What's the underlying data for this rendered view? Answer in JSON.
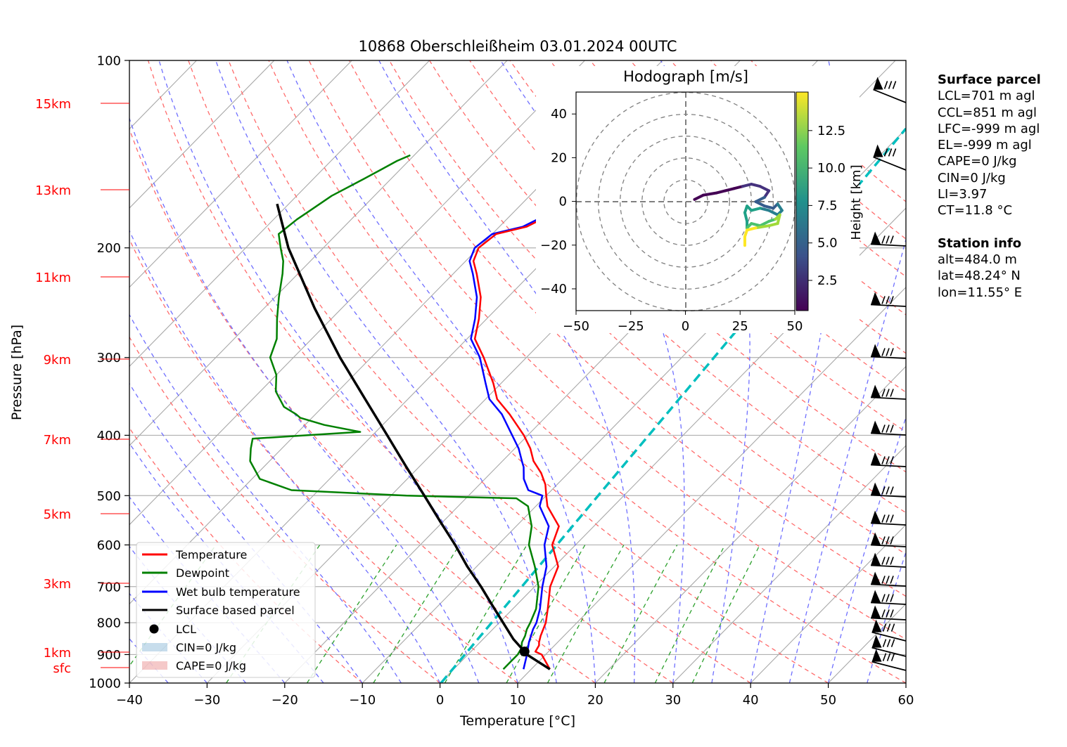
{
  "title": "10868 Oberschleißheim 03.01.2024 00UTC",
  "xlabel": "Temperature [°C]",
  "ylabel": "Pressure [hPa]",
  "pressure_ticks": [
    "100",
    "200",
    "300",
    "400",
    "500",
    "600",
    "700",
    "800",
    "900",
    "1000"
  ],
  "temp_ticks": [
    "−40",
    "−30",
    "−20",
    "−10",
    "0",
    "10",
    "20",
    "30",
    "40",
    "50",
    "60"
  ],
  "height_ticks": [
    {
      "label": "15km",
      "p": 147
    },
    {
      "label": "13km",
      "p": 178
    },
    {
      "label": "11km",
      "p": 216
    },
    {
      "label": "9km",
      "p": 263
    },
    {
      "label": "7km",
      "p": 336
    },
    {
      "label": "5km",
      "p": 461
    },
    {
      "label": "3km",
      "p": 634
    },
    {
      "label": "1km",
      "p": 808
    },
    {
      "label": "sfc",
      "p": 850
    }
  ],
  "legend": [
    "Temperature",
    "Dewpoint",
    "Wet bulb temperature",
    "Surface based parcel",
    "LCL",
    "CIN=0 J/kg",
    "CAPE=0 J/kg"
  ],
  "hodograph": {
    "title": "Hodograph [m/s]",
    "ticks": [
      "−50",
      "−25",
      "0",
      "25",
      "50"
    ],
    "yticks": [
      "−40",
      "−20",
      "0",
      "20",
      "40"
    ],
    "colorbar_label": "Height [km]",
    "colorbar_ticks": [
      "2.5",
      "5.0",
      "7.5",
      "10.0",
      "12.5"
    ]
  },
  "surface_parcel": {
    "heading": "Surface parcel",
    "lines": [
      "LCL=701 m agl",
      "CCL=851 m agl",
      "LFC=-999 m agl",
      "EL=-999 m agl",
      "CAPE=0 J/kg",
      "CIN=0 J/kg",
      "LI=3.97",
      "CT=11.8 °C"
    ]
  },
  "station_info": {
    "heading": "Station info",
    "lines": [
      "alt=484.0 m",
      "lat=48.24° N",
      "lon=11.55° E"
    ]
  },
  "colors": {
    "temperature": "#ff0000",
    "dewpoint": "#008000",
    "wetbulb": "#0000ff",
    "parcel": "#000000",
    "height": "#ff0000",
    "accent_dash": "#00bfbf"
  },
  "chart_data": {
    "type": "line",
    "title": "10868 Oberschleißheim 03.01.2024 00UTC",
    "xlabel": "Temperature [°C]",
    "ylabel": "Pressure [hPa]",
    "xlim": [
      -40,
      60
    ],
    "ylim": [
      1000,
      100
    ],
    "yscale": "log",
    "skew": "skew-T log-p",
    "grid": true,
    "legend_position": "lower-left",
    "series": [
      {
        "name": "Temperature",
        "points": [
          [
            950,
            12.4
          ],
          [
            900,
            9.5
          ],
          [
            890,
            8.3
          ],
          [
            870,
            8.0
          ],
          [
            860,
            7.6
          ],
          [
            840,
            7.0
          ],
          [
            800,
            6.0
          ],
          [
            760,
            4.5
          ],
          [
            700,
            2.0
          ],
          [
            650,
            0.5
          ],
          [
            600,
            -3.0
          ],
          [
            560,
            -4.5
          ],
          [
            520,
            -8.5
          ],
          [
            500,
            -10.0
          ],
          [
            480,
            -11.5
          ],
          [
            460,
            -13.5
          ],
          [
            440,
            -16.0
          ],
          [
            420,
            -18.0
          ],
          [
            400,
            -20.5
          ],
          [
            370,
            -25.0
          ],
          [
            350,
            -28.5
          ],
          [
            330,
            -31.0
          ],
          [
            300,
            -35.5
          ],
          [
            280,
            -39.0
          ],
          [
            260,
            -41.0
          ],
          [
            240,
            -43.5
          ],
          [
            220,
            -47.0
          ],
          [
            210,
            -49.0
          ],
          [
            200,
            -50.0
          ],
          [
            190,
            -49.5
          ],
          [
            185,
            -46.5
          ],
          [
            175,
            -44.5
          ],
          [
            165,
            -42.5
          ],
          [
            160,
            -41.0
          ],
          [
            155,
            -37.5
          ],
          [
            150,
            -35.0
          ],
          [
            143,
            -34.5
          ]
        ]
      },
      {
        "name": "Dewpoint",
        "points": [
          [
            950,
            6.4
          ],
          [
            920,
            6.4
          ],
          [
            900,
            6.4
          ],
          [
            880,
            6.1
          ],
          [
            860,
            5.4
          ],
          [
            840,
            5.0
          ],
          [
            820,
            4.4
          ],
          [
            800,
            4.0
          ],
          [
            760,
            3.0
          ],
          [
            700,
            0.5
          ],
          [
            650,
            -2.5
          ],
          [
            600,
            -6.0
          ],
          [
            560,
            -8.0
          ],
          [
            520,
            -11.0
          ],
          [
            505,
            -13.5
          ],
          [
            500,
            -28.0
          ],
          [
            490,
            -43.5
          ],
          [
            470,
            -49.0
          ],
          [
            440,
            -52.5
          ],
          [
            420,
            -54.0
          ],
          [
            405,
            -55.0
          ],
          [
            395,
            -42.0
          ],
          [
            385,
            -47.5
          ],
          [
            375,
            -51.5
          ],
          [
            370,
            -52.5
          ],
          [
            360,
            -55.0
          ],
          [
            340,
            -58.0
          ],
          [
            320,
            -60.0
          ],
          [
            300,
            -63.0
          ],
          [
            280,
            -64.5
          ],
          [
            260,
            -67.0
          ],
          [
            240,
            -69.5
          ],
          [
            220,
            -72.0
          ],
          [
            210,
            -73.5
          ],
          [
            200,
            -75.5
          ],
          [
            190,
            -77.5
          ],
          [
            180,
            -77.0
          ],
          [
            175,
            -76.5
          ],
          [
            165,
            -75.5
          ],
          [
            155,
            -73.5
          ],
          [
            150,
            -72.5
          ],
          [
            145,
            -71.5
          ],
          [
            142,
            -70.5
          ]
        ]
      },
      {
        "name": "Wet bulb temperature",
        "points": [
          [
            950,
            9.0
          ],
          [
            900,
            7.6
          ],
          [
            860,
            6.3
          ],
          [
            820,
            5.2
          ],
          [
            800,
            4.8
          ],
          [
            760,
            3.5
          ],
          [
            700,
            1.0
          ],
          [
            650,
            -1.0
          ],
          [
            600,
            -4.0
          ],
          [
            560,
            -5.8
          ],
          [
            520,
            -9.5
          ],
          [
            500,
            -10.5
          ],
          [
            490,
            -13.0
          ],
          [
            470,
            -15.0
          ],
          [
            450,
            -16.5
          ],
          [
            440,
            -17.5
          ],
          [
            420,
            -19.5
          ],
          [
            400,
            -22.0
          ],
          [
            370,
            -26.0
          ],
          [
            350,
            -29.5
          ],
          [
            330,
            -32.0
          ],
          [
            300,
            -36.0
          ],
          [
            280,
            -39.5
          ],
          [
            260,
            -41.5
          ],
          [
            240,
            -44.0
          ],
          [
            220,
            -47.5
          ],
          [
            210,
            -49.5
          ],
          [
            200,
            -50.5
          ],
          [
            190,
            -50.0
          ],
          [
            185,
            -47.0
          ],
          [
            175,
            -45.0
          ],
          [
            165,
            -43.0
          ],
          [
            160,
            -41.5
          ],
          [
            155,
            -38.0
          ],
          [
            150,
            -35.5
          ],
          [
            143,
            -35.0
          ]
        ]
      },
      {
        "name": "Surface based parcel",
        "points": [
          [
            950,
            12.4
          ],
          [
            900,
            7.6
          ],
          [
            890,
            6.9
          ],
          [
            850,
            3.9
          ],
          [
            800,
            0.5
          ],
          [
            750,
            -3.1
          ],
          [
            700,
            -6.9
          ],
          [
            650,
            -11.2
          ],
          [
            600,
            -15.5
          ],
          [
            550,
            -20.4
          ],
          [
            500,
            -25.7
          ],
          [
            450,
            -31.6
          ],
          [
            400,
            -38.1
          ],
          [
            350,
            -45.5
          ],
          [
            300,
            -54.0
          ],
          [
            250,
            -63.5
          ],
          [
            200,
            -74.5
          ],
          [
            170,
            -81.5
          ]
        ]
      }
    ],
    "lcl": {
      "p": 890,
      "t": 6.9
    },
    "cape_j_kg": 0,
    "cin_j_kg": 0
  }
}
